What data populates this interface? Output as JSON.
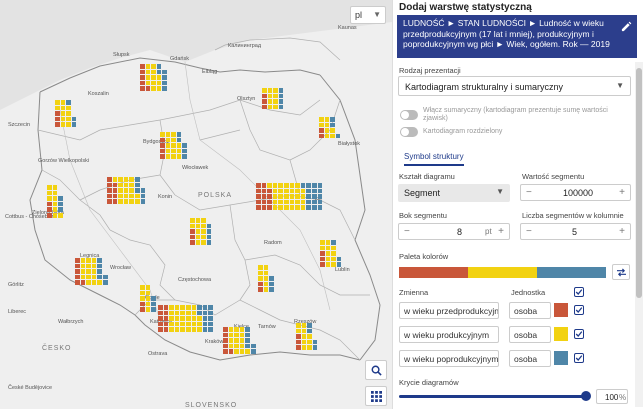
{
  "map": {
    "language": "pl",
    "places": [
      {
        "id": "gdansk",
        "text": "Gdańsk"
      },
      {
        "id": "kaliningrad",
        "text": "Калининград"
      },
      {
        "id": "kaunas",
        "text": "Kaunas"
      },
      {
        "id": "slupsk",
        "text": "Słupsk"
      },
      {
        "id": "elblag",
        "text": "Elbląg"
      },
      {
        "id": "szczecin",
        "text": "Szczecin"
      },
      {
        "id": "olsztyn",
        "text": "Olsztyn"
      },
      {
        "id": "koszalin",
        "text": "Koszalin"
      },
      {
        "id": "bydgoszcz",
        "text": "Bydgoszcz"
      },
      {
        "id": "bialystok",
        "text": "Białystok"
      },
      {
        "id": "gorzow",
        "text": "Gorzów Wielkopolski"
      },
      {
        "id": "wloclawek",
        "text": "Włocławek"
      },
      {
        "id": "konin",
        "text": "Konin"
      },
      {
        "id": "polska",
        "text": "POLSKA"
      },
      {
        "id": "cottbus",
        "text": "Cottbus - Chóśebuz"
      },
      {
        "id": "zielona",
        "text": "Zielona Góra"
      },
      {
        "id": "radom",
        "text": "Radom"
      },
      {
        "id": "legnica",
        "text": "Legnica"
      },
      {
        "id": "wroclaw",
        "text": "Wrocław"
      },
      {
        "id": "gorlitz",
        "text": "Görlitz"
      },
      {
        "id": "czestochowa",
        "text": "Częstochowa"
      },
      {
        "id": "kielce",
        "text": "Kielce"
      },
      {
        "id": "opole",
        "text": "Opole"
      },
      {
        "id": "walbrzych",
        "text": "Wałbrzych"
      },
      {
        "id": "katowice",
        "text": "Katowice"
      },
      {
        "id": "krakow",
        "text": "Kraków"
      },
      {
        "id": "tarnow",
        "text": "Tarnów"
      },
      {
        "id": "rzeszow",
        "text": "Rzeszów"
      },
      {
        "id": "lublin",
        "text": "Lublin"
      },
      {
        "id": "liberec",
        "text": "Liberec"
      },
      {
        "id": "cesko",
        "text": "ČESKO"
      },
      {
        "id": "slovensko",
        "text": "SLOVENSKO"
      },
      {
        "id": "ceske",
        "text": "České Budějovice"
      },
      {
        "id": "ostrava",
        "text": "Ostrava"
      },
      {
        "id": "warsaw_short",
        "text": "ice"
      }
    ]
  },
  "panel": {
    "title": "Dodaj warstwę statystyczną",
    "breadcrumb": "LUDNOŚĆ ► STAN LUDNOŚCI ► Ludność w wieku przedprodukcyjnym (17 lat i mniej), produkcyjnym i poprodukcyjnym wg płci ► Wiek, ogółem. Rok — 2019",
    "presentation_label": "Rodzaj prezentacji",
    "presentation_value": "Kartodiagram strukturalny i sumaryczny",
    "toggle1_text": "Włącz sumaryczny (kartodiagram prezentuje sumę wartości zjawisk)",
    "toggle2_text": "Kartodiagram rozdzielony",
    "tab_label": "Symbol struktury",
    "shape_label": "Kształt diagramu",
    "shape_value": "Segment",
    "segment_value_label": "Wartość segmentu",
    "segment_value": "100000",
    "side_label": "Bok segmentu",
    "side_value": "8",
    "side_unit": "pt",
    "count_label": "Liczba segmentów w kolumnie",
    "count_value": "5",
    "palette_label": "Paleta kolorów",
    "palette_colors": [
      "#c9573a",
      "#f2d211",
      "#4f86a8"
    ],
    "var_header": "Zmienna",
    "unit_header": "Jednostka",
    "variables": [
      {
        "name": "w wieku przedprodukcyjnym",
        "unit": "osoba",
        "color": "#c9573a"
      },
      {
        "name": "w wieku produkcyjnym",
        "unit": "osoba",
        "color": "#f2d211"
      },
      {
        "name": "w wieku poprodukcyjnym",
        "unit": "osoba",
        "color": "#4f86a8"
      }
    ],
    "opacity_label": "Krycie diagramów",
    "opacity_value": "100",
    "opacity_unit": "%"
  }
}
